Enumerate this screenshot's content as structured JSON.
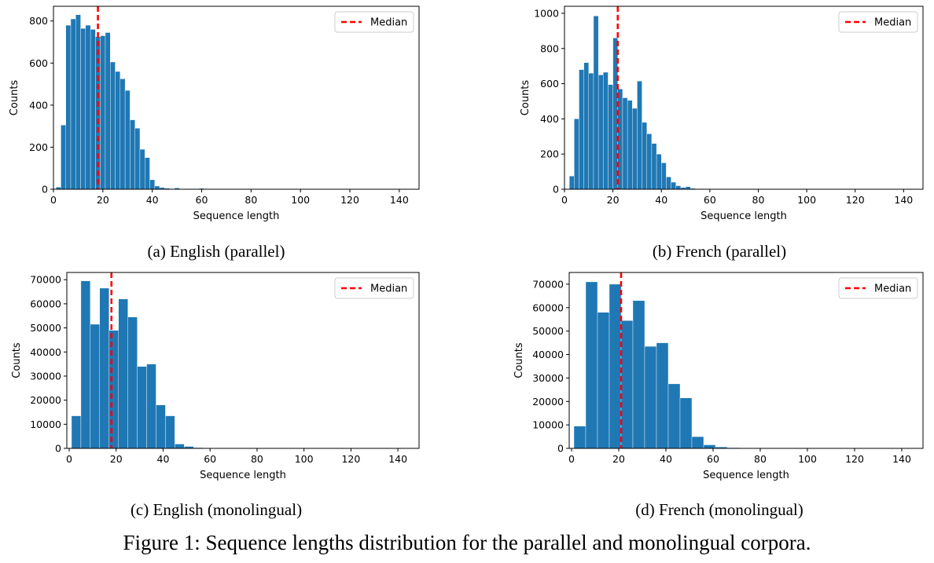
{
  "colors": {
    "bar": "#1f77b4",
    "bar_edge": "#ffffff",
    "median": "#ff0000"
  },
  "figure": {
    "caption": "Figure 1: Sequence lengths distribution for the parallel and monolingual corpora."
  },
  "chart_data": [
    {
      "id": "a",
      "type": "bar",
      "caption": "(a) English (parallel)",
      "xlabel": "Sequence length",
      "ylabel": "Counts",
      "xlim": [
        0,
        148
      ],
      "ylim": [
        0,
        870
      ],
      "xticks": [
        0,
        20,
        40,
        60,
        80,
        100,
        120,
        140
      ],
      "yticks": [
        0,
        200,
        400,
        600,
        800
      ],
      "bin_width": 2,
      "bin_start": 1,
      "values": [
        10,
        305,
        780,
        810,
        830,
        765,
        780,
        760,
        725,
        730,
        745,
        605,
        560,
        525,
        470,
        330,
        290,
        190,
        150,
        45,
        15,
        8,
        5,
        3,
        6,
        2,
        3,
        2,
        1,
        4,
        1,
        1,
        1,
        1,
        0,
        0,
        0,
        1,
        0,
        0,
        0,
        0,
        0,
        0,
        0,
        0,
        0,
        0,
        0,
        0,
        0,
        0,
        0,
        0,
        0,
        0,
        0,
        0,
        0,
        0,
        0,
        0,
        0,
        0,
        0,
        0,
        0,
        0,
        0,
        0,
        0,
        0
      ],
      "median": 18,
      "legend": {
        "label": "Median",
        "position": "top-right"
      }
    },
    {
      "id": "b",
      "type": "bar",
      "caption": "(b) French (parallel)",
      "xlabel": "Sequence length",
      "ylabel": "Counts",
      "xlim": [
        0,
        148
      ],
      "ylim": [
        0,
        1040
      ],
      "xticks": [
        0,
        20,
        40,
        60,
        80,
        100,
        120,
        140
      ],
      "yticks": [
        0,
        200,
        400,
        600,
        800,
        1000
      ],
      "bin_width": 2,
      "bin_start": 2,
      "values": [
        75,
        400,
        680,
        720,
        660,
        985,
        650,
        665,
        595,
        860,
        570,
        520,
        505,
        460,
        615,
        380,
        315,
        260,
        200,
        150,
        70,
        40,
        20,
        10,
        15,
        5,
        2,
        3,
        2,
        1,
        1,
        1,
        0,
        0,
        0,
        0,
        0,
        0,
        0,
        0,
        0,
        0,
        0,
        0,
        0,
        0,
        0,
        0,
        0,
        0,
        0,
        0,
        0,
        0,
        0,
        0,
        0,
        0,
        0,
        0,
        0,
        0,
        0,
        0,
        0,
        0,
        0,
        0,
        0,
        0,
        0,
        0
      ],
      "median": 22,
      "legend": {
        "label": "Median",
        "position": "top-right"
      }
    },
    {
      "id": "c",
      "type": "bar",
      "caption": "(c) English (monolingual)",
      "xlabel": "Sequence length",
      "ylabel": "Counts",
      "xlim": [
        -1,
        149
      ],
      "ylim": [
        0,
        73000
      ],
      "xticks": [
        0,
        20,
        40,
        60,
        80,
        100,
        120,
        140
      ],
      "yticks": [
        0,
        10000,
        20000,
        30000,
        40000,
        50000,
        60000,
        70000
      ],
      "bin_width": 4,
      "bin_start": 1,
      "values": [
        13500,
        69500,
        51500,
        66500,
        49000,
        62000,
        54500,
        34000,
        35000,
        18000,
        13500,
        1800,
        800,
        300,
        100,
        50,
        30,
        20,
        10,
        10,
        5,
        5,
        5,
        0,
        0,
        0,
        0,
        0,
        0,
        0,
        0,
        0,
        0,
        0,
        0,
        0
      ],
      "median": 18,
      "legend": {
        "label": "Median",
        "position": "top-right"
      }
    },
    {
      "id": "d",
      "type": "bar",
      "caption": "(d) French (monolingual)",
      "xlabel": "Sequence length",
      "ylabel": "Counts",
      "xlim": [
        -1,
        149
      ],
      "ylim": [
        0,
        75000
      ],
      "xticks": [
        0,
        20,
        40,
        60,
        80,
        100,
        120,
        140
      ],
      "yticks": [
        0,
        10000,
        20000,
        30000,
        40000,
        50000,
        60000,
        70000
      ],
      "bin_width": 5,
      "bin_start": 1,
      "values": [
        9500,
        71000,
        58000,
        70000,
        54500,
        63000,
        43500,
        45000,
        27500,
        21500,
        5000,
        1500,
        600,
        300,
        150,
        80,
        50,
        20,
        10,
        10,
        5,
        5,
        5,
        0,
        0,
        0,
        0,
        0,
        0
      ],
      "median": 21,
      "legend": {
        "label": "Median",
        "position": "top-right"
      }
    }
  ]
}
